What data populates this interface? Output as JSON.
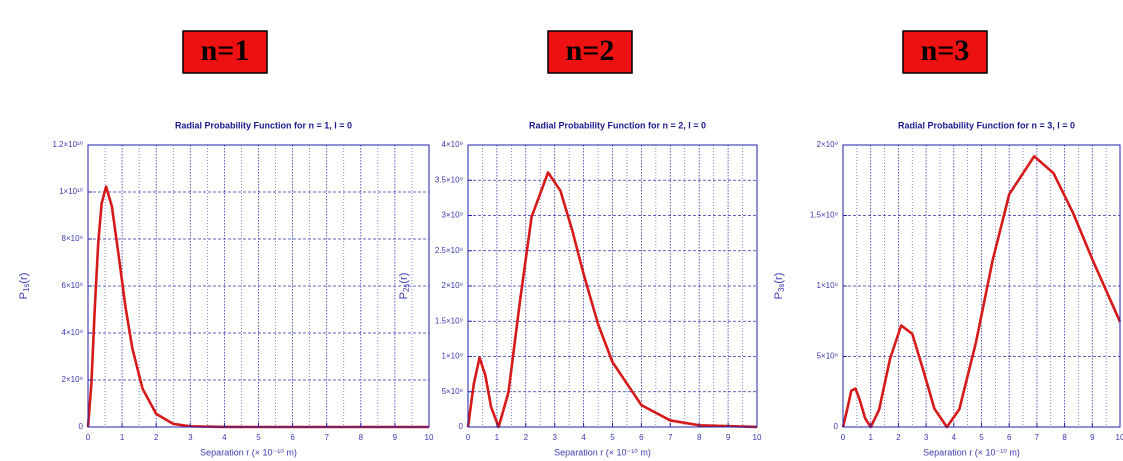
{
  "chart_data": [
    {
      "type": "line",
      "heading": "n=1",
      "title": "Radial Probability Function for n = 1, l = 0",
      "ylabel": {
        "symbol": "P",
        "subscript": "1s",
        "rest": "(r)"
      },
      "xlabel": "Separation r (× 10⁻¹⁰ m)",
      "x": [
        0,
        0.1,
        0.2,
        0.3,
        0.4,
        0.53,
        0.7,
        0.9,
        1.1,
        1.3,
        1.6,
        2,
        2.5,
        3,
        4,
        5,
        10
      ],
      "values": [
        0,
        1850000000,
        5080000000,
        7830000000,
        9520000000,
        10230000000,
        9390000000,
        7290000000,
        5100000000,
        3350000000,
        1630000000,
        560000000,
        133000000,
        29000000,
        1000000,
        0,
        0
      ],
      "color": "#d61a1a",
      "xlim": [
        0,
        10
      ],
      "xticks": [
        0,
        1,
        2,
        3,
        4,
        5,
        6,
        7,
        8,
        9,
        10
      ],
      "minor_xticks": [
        0.5,
        1.5,
        2.5,
        3.5,
        4.5,
        5.5,
        6.5,
        7.5,
        8.5,
        9.5
      ],
      "ylim": [
        0,
        12000000000
      ],
      "yticks": [
        0,
        {
          "value": 2000000000,
          "label": "2×10⁹"
        },
        {
          "value": 4000000000,
          "label": "4×10⁹"
        },
        {
          "value": 6000000000,
          "label": "6×10⁹"
        },
        {
          "value": 8000000000,
          "label": "8×10⁹"
        },
        {
          "value": 10000000000,
          "label": "1×10¹⁰"
        },
        {
          "value": 12000000000,
          "label": "1.2×10¹⁰"
        }
      ],
      "grid": true
    },
    {
      "type": "line",
      "heading": "n=2",
      "title": "Radial Probability Function for n = 2, l = 0",
      "ylabel": {
        "symbol": "P",
        "subscript": "2s",
        "rest": "(r)"
      },
      "xlabel": "Separation r (× 10⁻¹⁰ m)",
      "x": [
        0,
        0.2,
        0.4,
        0.6,
        0.8,
        1.06,
        1.4,
        1.8,
        2.2,
        2.77,
        3.2,
        3.6,
        4,
        4.5,
        5,
        6,
        7,
        8,
        10
      ],
      "values": [
        0,
        610000000,
        983000000,
        734000000,
        283000000,
        0,
        491000000,
        1790000000,
        2980000000,
        3610000000,
        3350000000,
        2800000000,
        2170000000,
        1460000000,
        920000000,
        310000000,
        93000000,
        25000000,
        1500000
      ],
      "color": "#d61a1a",
      "xlim": [
        0,
        10
      ],
      "xticks": [
        0,
        1,
        2,
        3,
        4,
        5,
        6,
        7,
        8,
        9,
        10
      ],
      "minor_xticks": [
        0.5,
        1.5,
        2.5,
        3.5,
        4.5,
        5.5,
        6.5,
        7.5,
        8.5,
        9.5
      ],
      "ylim": [
        0,
        4000000000
      ],
      "yticks": [
        0,
        {
          "value": 500000000,
          "label": "5×10⁸"
        },
        {
          "value": 1000000000,
          "label": "1×10⁹"
        },
        {
          "value": 1500000000,
          "label": "1.5×10⁹"
        },
        {
          "value": 2000000000,
          "label": "2×10⁹"
        },
        {
          "value": 2500000000,
          "label": "2.5×10⁹"
        },
        {
          "value": 3000000000,
          "label": "3×10⁹"
        },
        {
          "value": 3500000000,
          "label": "3.5×10⁹"
        },
        {
          "value": 4000000000,
          "label": "4×10⁹"
        }
      ],
      "grid": true
    },
    {
      "type": "line",
      "heading": "n=3",
      "title": "Radial Probability Function for n = 3, l = 0",
      "ylabel": {
        "symbol": "P",
        "subscript": "3s",
        "rest": "(r)"
      },
      "xlabel": "Separation r (× 10⁻¹⁰ m)",
      "x": [
        0,
        0.15,
        0.3,
        0.45,
        0.6,
        0.8,
        1.0,
        1.3,
        1.7,
        2.1,
        2.5,
        2.9,
        3.3,
        3.75,
        4.2,
        4.8,
        5.4,
        6.0,
        6.9,
        7.6,
        8.3,
        9,
        10
      ],
      "values": [
        0,
        124000000,
        258000000,
        272000000,
        195000000,
        61000000,
        0,
        120000000,
        485000000,
        720000000,
        661000000,
        401000000,
        130000000,
        0,
        126000000,
        600000000,
        1180000000,
        1650000000,
        1920000000,
        1800000000,
        1520000000,
        1190000000,
        746000000
      ],
      "color": "#d61a1a",
      "xlim": [
        0,
        10
      ],
      "xticks": [
        0,
        1,
        2,
        3,
        4,
        5,
        6,
        7,
        8,
        9,
        10
      ],
      "minor_xticks": [
        0.5,
        1.5,
        2.5,
        3.5,
        4.5,
        5.5,
        6.5,
        7.5,
        8.5,
        9.5
      ],
      "ylim": [
        0,
        2000000000
      ],
      "yticks": [
        0,
        {
          "value": 500000000,
          "label": "5×10⁸"
        },
        {
          "value": 1000000000,
          "label": "1×10⁹"
        },
        {
          "value": 1500000000,
          "label": "1.5×10⁹"
        },
        {
          "value": 2000000000,
          "label": "2×10⁹"
        }
      ],
      "grid": true
    }
  ]
}
